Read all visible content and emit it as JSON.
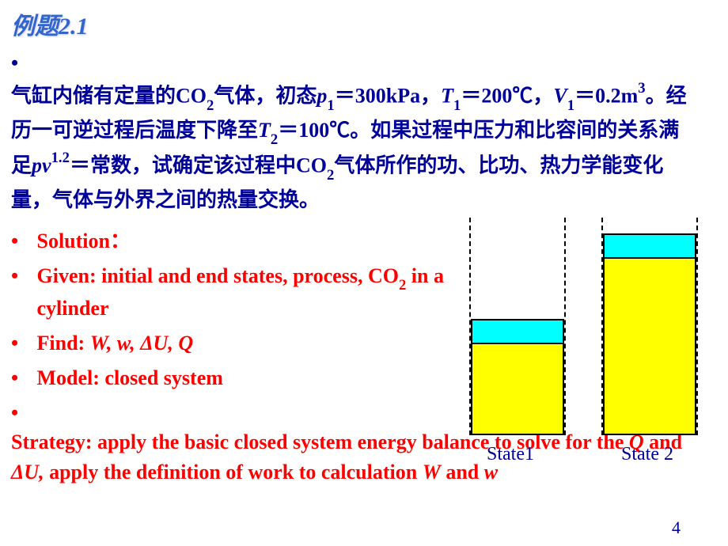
{
  "title": "例题2.1",
  "problem": {
    "text_html": "气缸内储有定量的CO<span class='sub'>2</span>气体，初态<span class='italic'>p</span><span class='sub'>1</span>＝300kPa，<span class='italic'>T</span><span class='sub'>1</span>＝200℃，<span class='italic'>V</span><span class='sub'>1</span>＝0.2m<span class='sup'>3</span>。经历一可逆过程后温度下降至<span class='italic'>T</span><span class='sub'>2</span>＝100℃。如果过程中压力和比容间的关系满足<span class='italic'>pv</span><span class='sup'>1.2</span>＝常数，试确定该过程中CO<span class='sub'>2</span>气体所作的功、比功、热力学能变化量，气体与外界之间的热量交换。"
  },
  "solution": {
    "line1": "Solution：",
    "line2_html": "Given: initial and end states, process, CO<span class='sub'>2</span> in a cylinder",
    "line3_html": "Find: <span class='italic'>W, w, ΔU, Q</span>",
    "line4": "Model: closed system",
    "line5_html": "Strategy: apply the basic closed system energy balance to solve for the <span class='italic'>Q</span> and <span class='italic'>ΔU,</span> apply the definition of work to  calculation <span class='italic'>W</span> and <span class='italic'>w</span>"
  },
  "diagram": {
    "state1_label": "State1",
    "state2_label": "State 2",
    "colors": {
      "piston": "#00ffff",
      "gas": "#ffff00",
      "border": "#000000"
    }
  },
  "page_number": "4",
  "theme": {
    "title_color": "#3366cc",
    "problem_color": "#000099",
    "solution_color": "#ff0000",
    "label_color": "#000099",
    "background": "#ffffff"
  }
}
